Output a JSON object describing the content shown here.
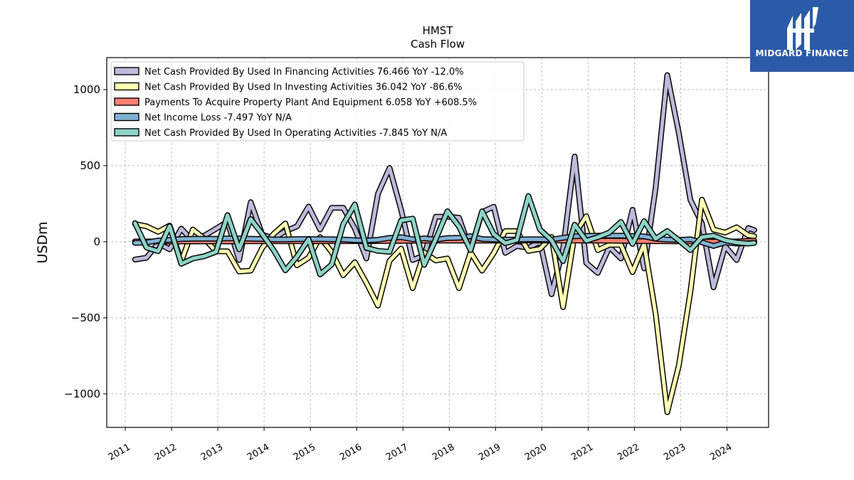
{
  "brand": {
    "name": "MIDGARD FINANCE",
    "color": "#2b5ba8"
  },
  "chart_data": {
    "type": "line",
    "title": "HMST",
    "subtitle": "Cash Flow",
    "xlabel": "",
    "ylabel": "USDm",
    "ylim": [
      -1220,
      1210
    ],
    "xlim": [
      2010.6,
      2024.9
    ],
    "yticks": [
      1000,
      500,
      0,
      -500,
      -1000
    ],
    "ytick_labels": [
      "1000",
      "500",
      "0",
      "−500",
      "−1000"
    ],
    "xticks": [
      2011,
      2012,
      2013,
      2014,
      2015,
      2016,
      2017,
      2018,
      2019,
      2020,
      2021,
      2022,
      2023,
      2024
    ],
    "xtick_labels": [
      "2011",
      "2012",
      "2013",
      "2014",
      "2015",
      "2016",
      "2017",
      "2018",
      "2019",
      "2020",
      "2021",
      "2022",
      "2023",
      "2024"
    ],
    "grid": true,
    "legend_position": "top-left",
    "series": [
      {
        "name": "Net Cash Provided By Used In Financing Activities",
        "legend_label": "Net Cash Provided By Used In Financing Activities  76.466 YoY -12.0%",
        "color": "#bebada",
        "points": [
          [
            2011.21,
            -117
          ],
          [
            2011.46,
            -105
          ],
          [
            2011.71,
            -10
          ],
          [
            2011.96,
            -50
          ],
          [
            2012.21,
            86
          ],
          [
            2012.46,
            4
          ],
          [
            2012.71,
            40
          ],
          [
            2012.96,
            85
          ],
          [
            2013.21,
            132
          ],
          [
            2013.46,
            -120
          ],
          [
            2013.71,
            260
          ],
          [
            2013.96,
            46
          ],
          [
            2014.21,
            23
          ],
          [
            2014.46,
            70
          ],
          [
            2014.71,
            101
          ],
          [
            2014.96,
            231
          ],
          [
            2015.21,
            80
          ],
          [
            2015.46,
            223
          ],
          [
            2015.71,
            223
          ],
          [
            2015.96,
            87
          ],
          [
            2016.21,
            -110
          ],
          [
            2016.46,
            315
          ],
          [
            2016.71,
            485
          ],
          [
            2016.96,
            210
          ],
          [
            2017.21,
            -120
          ],
          [
            2017.46,
            -90
          ],
          [
            2017.71,
            164
          ],
          [
            2017.96,
            164
          ],
          [
            2018.21,
            158
          ],
          [
            2018.46,
            -58
          ],
          [
            2018.71,
            195
          ],
          [
            2018.96,
            230
          ],
          [
            2019.21,
            -73
          ],
          [
            2019.46,
            -28
          ],
          [
            2019.71,
            -40
          ],
          [
            2019.96,
            0
          ],
          [
            2020.21,
            -345
          ],
          [
            2020.46,
            -50
          ],
          [
            2020.71,
            560
          ],
          [
            2020.96,
            -140
          ],
          [
            2021.21,
            -205
          ],
          [
            2021.46,
            -35
          ],
          [
            2021.71,
            -110
          ],
          [
            2021.96,
            210
          ],
          [
            2022.21,
            -175
          ],
          [
            2022.46,
            355
          ],
          [
            2022.71,
            1095
          ],
          [
            2022.96,
            715
          ],
          [
            2023.21,
            275
          ],
          [
            2023.46,
            120
          ],
          [
            2023.71,
            -300
          ],
          [
            2023.96,
            -30
          ],
          [
            2024.21,
            -120
          ],
          [
            2024.46,
            90
          ],
          [
            2024.59,
            76.466
          ]
        ]
      },
      {
        "name": "Net Cash Provided By Used In Investing Activities",
        "legend_label": "Net Cash Provided By Used In Investing Activities  36.042 YoY -86.6%",
        "color": "#ffffb3",
        "points": [
          [
            2011.21,
            117
          ],
          [
            2011.46,
            101
          ],
          [
            2011.71,
            65
          ],
          [
            2011.96,
            106
          ],
          [
            2012.21,
            -130
          ],
          [
            2012.46,
            80
          ],
          [
            2012.71,
            20
          ],
          [
            2012.96,
            -63
          ],
          [
            2013.21,
            -63
          ],
          [
            2013.46,
            -195
          ],
          [
            2013.71,
            -190
          ],
          [
            2013.96,
            -40
          ],
          [
            2014.21,
            53
          ],
          [
            2014.46,
            120
          ],
          [
            2014.71,
            -155
          ],
          [
            2014.96,
            -105
          ],
          [
            2015.21,
            30
          ],
          [
            2015.46,
            -68
          ],
          [
            2015.71,
            -220
          ],
          [
            2015.96,
            -135
          ],
          [
            2016.21,
            -270
          ],
          [
            2016.46,
            -420
          ],
          [
            2016.71,
            -125
          ],
          [
            2016.96,
            -45
          ],
          [
            2017.21,
            -305
          ],
          [
            2017.46,
            -70
          ],
          [
            2017.71,
            -123
          ],
          [
            2017.96,
            -110
          ],
          [
            2018.21,
            -305
          ],
          [
            2018.46,
            -70
          ],
          [
            2018.71,
            -190
          ],
          [
            2018.96,
            -75
          ],
          [
            2019.21,
            70
          ],
          [
            2019.46,
            70
          ],
          [
            2019.71,
            -60
          ],
          [
            2019.96,
            -47
          ],
          [
            2020.21,
            32
          ],
          [
            2020.46,
            -430
          ],
          [
            2020.71,
            50
          ],
          [
            2020.96,
            168
          ],
          [
            2021.21,
            -55
          ],
          [
            2021.46,
            -20
          ],
          [
            2021.71,
            -20
          ],
          [
            2021.96,
            -200
          ],
          [
            2022.21,
            -15
          ],
          [
            2022.46,
            -475
          ],
          [
            2022.71,
            -1120
          ],
          [
            2022.96,
            -815
          ],
          [
            2023.21,
            -330
          ],
          [
            2023.46,
            277
          ],
          [
            2023.71,
            80
          ],
          [
            2023.96,
            60
          ],
          [
            2024.21,
            95
          ],
          [
            2024.46,
            42
          ],
          [
            2024.59,
            36.042
          ]
        ]
      },
      {
        "name": "Payments To Acquire Property Plant And Equipment",
        "legend_label": "Payments To Acquire Property Plant And Equipment  6.058 YoY +608.5%",
        "color": "#fb8072",
        "points": [
          [
            2011.21,
            2
          ],
          [
            2011.71,
            2
          ],
          [
            2012.21,
            2
          ],
          [
            2012.71,
            2
          ],
          [
            2013.21,
            2
          ],
          [
            2013.71,
            3
          ],
          [
            2014.21,
            3
          ],
          [
            2014.71,
            3
          ],
          [
            2015.21,
            3
          ],
          [
            2015.71,
            4
          ],
          [
            2016.21,
            4
          ],
          [
            2016.71,
            5
          ],
          [
            2017.21,
            6
          ],
          [
            2017.71,
            7
          ],
          [
            2018.21,
            7
          ],
          [
            2018.71,
            7
          ],
          [
            2019.21,
            7
          ],
          [
            2019.71,
            8
          ],
          [
            2020.21,
            8
          ],
          [
            2020.71,
            8
          ],
          [
            2021.21,
            7
          ],
          [
            2021.71,
            6
          ],
          [
            2022.21,
            4
          ],
          [
            2022.71,
            3
          ],
          [
            2023.21,
            2
          ],
          [
            2023.71,
            1
          ],
          [
            2024.21,
            2
          ],
          [
            2024.59,
            6.058
          ]
        ]
      },
      {
        "name": "Net Income Loss",
        "legend_label": "Net Income Loss  -7.497 YoY N/A",
        "color": "#80b1d3",
        "points": [
          [
            2011.21,
            -8
          ],
          [
            2011.46,
            -5
          ],
          [
            2011.71,
            8
          ],
          [
            2011.96,
            12
          ],
          [
            2012.21,
            18
          ],
          [
            2012.46,
            20
          ],
          [
            2012.71,
            20
          ],
          [
            2012.96,
            20
          ],
          [
            2013.21,
            22
          ],
          [
            2013.46,
            22
          ],
          [
            2013.71,
            20
          ],
          [
            2013.96,
            18
          ],
          [
            2014.21,
            15
          ],
          [
            2014.46,
            15
          ],
          [
            2014.71,
            17
          ],
          [
            2014.96,
            18
          ],
          [
            2015.21,
            17
          ],
          [
            2015.46,
            16
          ],
          [
            2015.71,
            15
          ],
          [
            2015.96,
            10
          ],
          [
            2016.21,
            8
          ],
          [
            2016.46,
            13
          ],
          [
            2016.71,
            25
          ],
          [
            2016.96,
            30
          ],
          [
            2017.21,
            16
          ],
          [
            2017.46,
            22
          ],
          [
            2017.71,
            14
          ],
          [
            2017.96,
            24
          ],
          [
            2018.21,
            26
          ],
          [
            2018.46,
            36
          ],
          [
            2018.71,
            18
          ],
          [
            2018.96,
            15
          ],
          [
            2019.21,
            14
          ],
          [
            2019.46,
            14
          ],
          [
            2019.71,
            16
          ],
          [
            2019.96,
            16
          ],
          [
            2020.21,
            14
          ],
          [
            2020.46,
            26
          ],
          [
            2020.71,
            36
          ],
          [
            2020.96,
            38
          ],
          [
            2021.21,
            40
          ],
          [
            2021.46,
            40
          ],
          [
            2021.71,
            40
          ],
          [
            2021.96,
            38
          ],
          [
            2022.21,
            35
          ],
          [
            2022.46,
            20
          ],
          [
            2022.71,
            14
          ],
          [
            2022.96,
            12
          ],
          [
            2023.21,
            16
          ],
          [
            2023.46,
            -4
          ],
          [
            2023.71,
            -28
          ],
          [
            2023.96,
            -5
          ],
          [
            2024.21,
            -12
          ],
          [
            2024.46,
            -10
          ],
          [
            2024.59,
            -7.497
          ]
        ]
      },
      {
        "name": "Net Cash Provided By Used In Operating Activities",
        "legend_label": "Net Cash Provided By Used In Operating Activities  -7.845 YoY N/A",
        "color": "#8dd3c7",
        "points": [
          [
            2011.21,
            122
          ],
          [
            2011.46,
            -38
          ],
          [
            2011.71,
            -62
          ],
          [
            2011.96,
            102
          ],
          [
            2012.21,
            -145
          ],
          [
            2012.46,
            -110
          ],
          [
            2012.71,
            -95
          ],
          [
            2012.96,
            -66
          ],
          [
            2013.21,
            175
          ],
          [
            2013.46,
            -50
          ],
          [
            2013.71,
            149
          ],
          [
            2013.96,
            50
          ],
          [
            2014.21,
            -58
          ],
          [
            2014.46,
            -188
          ],
          [
            2014.71,
            -98
          ],
          [
            2014.96,
            16
          ],
          [
            2015.21,
            -215
          ],
          [
            2015.46,
            -150
          ],
          [
            2015.71,
            115
          ],
          [
            2015.96,
            245
          ],
          [
            2016.21,
            -40
          ],
          [
            2016.46,
            -60
          ],
          [
            2016.71,
            -66
          ],
          [
            2016.96,
            140
          ],
          [
            2017.21,
            152
          ],
          [
            2017.46,
            -152
          ],
          [
            2017.71,
            18
          ],
          [
            2017.96,
            200
          ],
          [
            2018.21,
            100
          ],
          [
            2018.46,
            -55
          ],
          [
            2018.71,
            200
          ],
          [
            2018.96,
            51
          ],
          [
            2019.21,
            -10
          ],
          [
            2019.46,
            12
          ],
          [
            2019.71,
            300
          ],
          [
            2019.96,
            80
          ],
          [
            2020.21,
            10
          ],
          [
            2020.46,
            -128
          ],
          [
            2020.71,
            112
          ],
          [
            2020.96,
            6
          ],
          [
            2021.21,
            30
          ],
          [
            2021.46,
            61
          ],
          [
            2021.71,
            130
          ],
          [
            2021.96,
            -15
          ],
          [
            2022.21,
            135
          ],
          [
            2022.46,
            20
          ],
          [
            2022.71,
            70
          ],
          [
            2022.96,
            10
          ],
          [
            2023.21,
            -55
          ],
          [
            2023.46,
            30
          ],
          [
            2023.71,
            40
          ],
          [
            2023.96,
            10
          ],
          [
            2024.21,
            -5
          ],
          [
            2024.46,
            -12
          ],
          [
            2024.59,
            -7.845
          ]
        ]
      }
    ]
  }
}
